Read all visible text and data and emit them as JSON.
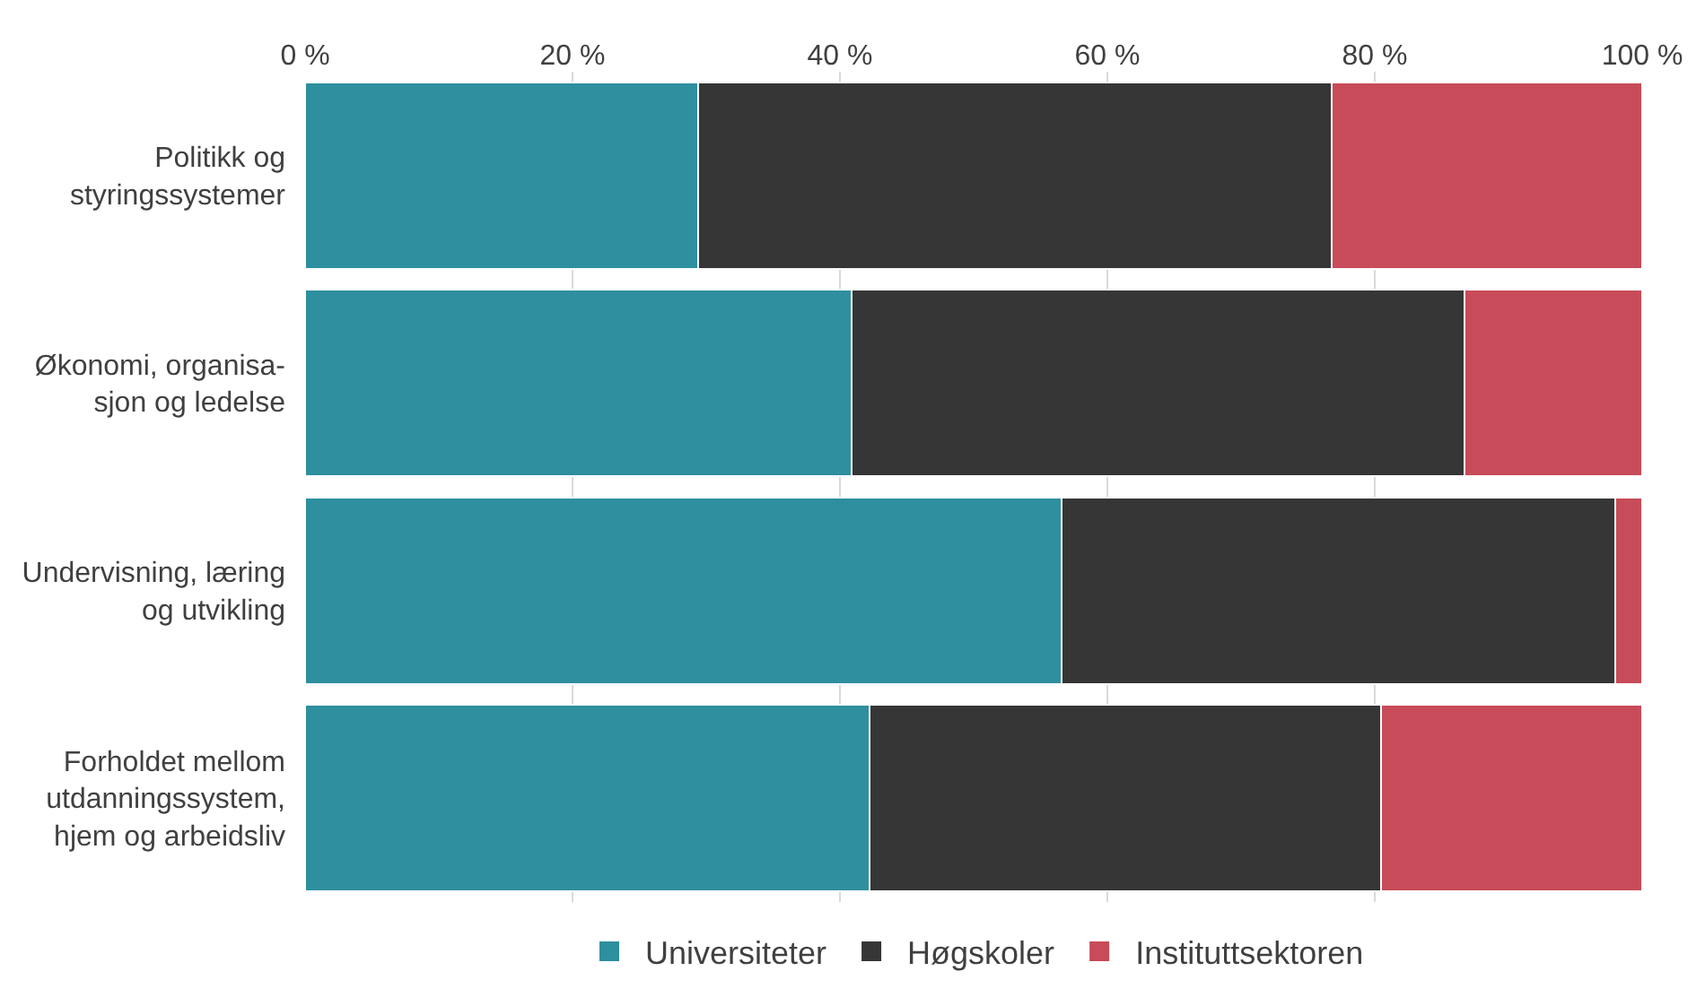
{
  "chart_data": {
    "type": "bar",
    "orientation": "horizontal",
    "stacked": true,
    "categories": [
      "Politikk og\nstyringssystemer",
      "Økonomi, organisa-\nsjon og ledelse",
      "Undervisning, læring\nog utvikling",
      "Forholdet mellom\nutdanningssystem,\nhjem og arbeidsliv"
    ],
    "series": [
      {
        "name": "Universiteter",
        "color": "#2e8f9e",
        "values": [
          29.4,
          40.9,
          56.6,
          42.2
        ]
      },
      {
        "name": "Høgskoler",
        "color": "#363636",
        "values": [
          47.4,
          45.8,
          41.4,
          38.3
        ]
      },
      {
        "name": "Instituttsektoren",
        "color": "#c84b59",
        "values": [
          23.2,
          13.3,
          2.0,
          19.5
        ]
      }
    ],
    "xlim": [
      0,
      100
    ],
    "xticks": [
      {
        "value": 0,
        "label": "0 %"
      },
      {
        "value": 20,
        "label": "20 %"
      },
      {
        "value": 40,
        "label": "40 %"
      },
      {
        "value": 60,
        "label": "60 %"
      },
      {
        "value": 80,
        "label": "80 %"
      },
      {
        "value": 100,
        "label": "100 %"
      }
    ],
    "grid": "x",
    "legend": "bottom"
  }
}
